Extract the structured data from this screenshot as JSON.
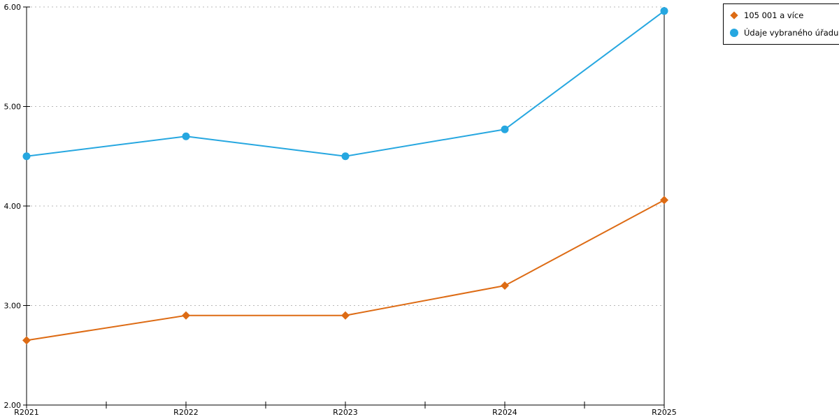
{
  "chart_data": {
    "type": "line",
    "title": "",
    "xlabel": "",
    "ylabel": "",
    "categories": [
      "R2021",
      "R2022",
      "R2023",
      "R2024",
      "R2025"
    ],
    "series": [
      {
        "name": "105 001 a více",
        "marker": "diamond",
        "color": "#dd6b14",
        "values": [
          2.65,
          2.9,
          2.9,
          3.2,
          4.06
        ]
      },
      {
        "name": "Údaje vybraného úřadu",
        "marker": "circle",
        "color": "#26a7e0",
        "values": [
          4.5,
          4.7,
          4.5,
          4.77,
          5.96
        ]
      }
    ],
    "ylim": [
      2,
      6
    ],
    "y_ticks": [
      {
        "label": "2.00",
        "value": 2
      },
      {
        "label": "3.00",
        "value": 3
      },
      {
        "label": "4.00",
        "value": 4
      },
      {
        "label": "5.00",
        "value": 5
      },
      {
        "label": "6.00",
        "value": 6
      }
    ],
    "grid": "horizontal-dashed",
    "grid_color": "#b8b8b8",
    "axis_color": "#000000",
    "legend_position": "top-right"
  }
}
